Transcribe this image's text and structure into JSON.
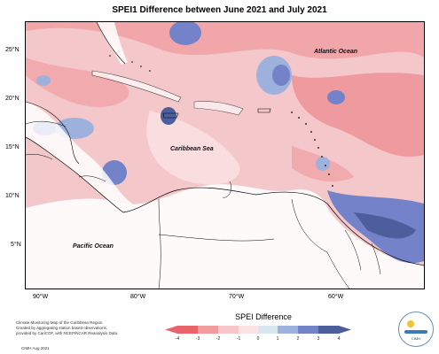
{
  "title": "SPEI1 Difference between June 2021 and July 2021",
  "labels": {
    "atlantic": "Atlantic Ocean",
    "caribbean": "Caribbean Sea",
    "pacific": "Pacific Ocean"
  },
  "latitude_ticks": [
    "25°N",
    "20°N",
    "15°N",
    "10°N",
    "5°N"
  ],
  "longitude_ticks": [
    "90°W",
    "80°W",
    "70°W",
    "60°W"
  ],
  "legend": {
    "title": "SPEI Difference",
    "ticks": [
      "-4",
      "-3",
      "-2",
      "-1",
      "0",
      "1",
      "2",
      "3",
      "4"
    ],
    "colors": [
      "#e8636a",
      "#f19b9e",
      "#f7c6c8",
      "#fbe3e4",
      "#d8e6ef",
      "#9db1dc",
      "#7482c9",
      "#4c5e9b"
    ]
  },
  "credit": {
    "line1": "Climate Monitoring Map of the Caribbean Region",
    "line2": "Created by aggregating station based observations,",
    "line3": "provided by CariCOF, with NCEP/NCAR Reanalysis Data.",
    "date": "CIMH Aug 2021"
  },
  "logo_text": "CIMH"
}
